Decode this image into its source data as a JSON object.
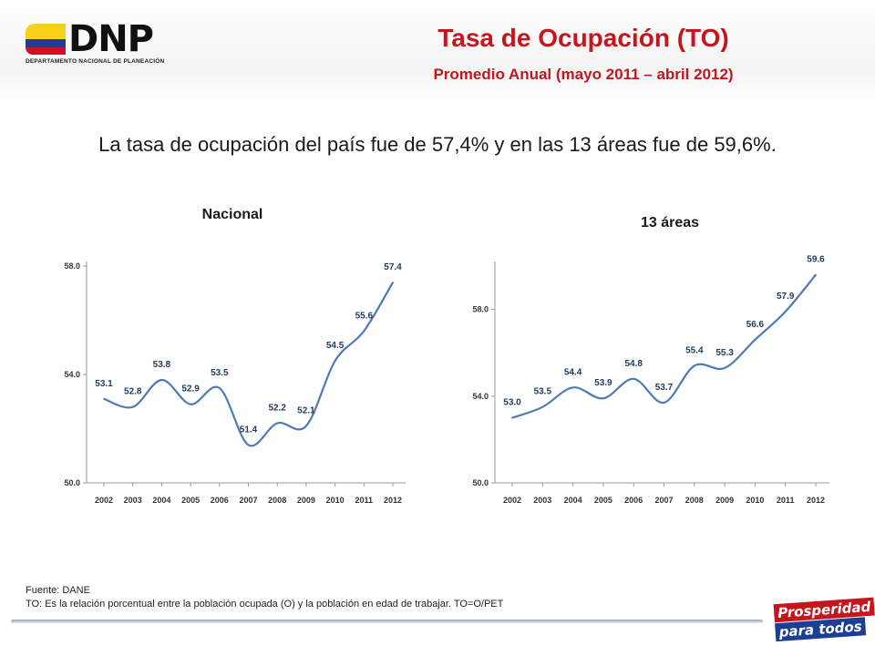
{
  "header": {
    "logo_text": "DNP",
    "logo_subtitle": "DEPARTAMENTO NACIONAL DE PLANEACIÓN",
    "title": "Tasa de Ocupación (TO)",
    "subtitle": "Promedio Anual (mayo 2011 – abril 2012)"
  },
  "headline": "La tasa de ocupación del país fue de 57,4% y en las 13 áreas fue de 59,6%.",
  "chart_data": [
    {
      "type": "line",
      "title": "Nacional",
      "x": [
        "2002",
        "2003",
        "2004",
        "2005",
        "2006",
        "2007",
        "2008",
        "2009",
        "2010",
        "2011",
        "2012"
      ],
      "series": [
        {
          "values": [
            53.1,
            52.8,
            53.8,
            52.9,
            53.5,
            51.4,
            52.2,
            52.1,
            54.5,
            55.6,
            57.4
          ]
        }
      ],
      "yticks": [
        "50.0",
        "54.0",
        "58.0"
      ],
      "data_labels": [
        "53.1",
        "52.8",
        "53.8",
        "52.9",
        "53.5",
        "51.4",
        "52.2",
        "52.1",
        "54.5",
        "55.6",
        "57.4"
      ],
      "ylim": [
        50,
        58
      ],
      "grid": false,
      "color": "#4f7ab5"
    },
    {
      "type": "line",
      "title": "13 áreas",
      "x": [
        "2002",
        "2003",
        "2004",
        "2005",
        "2006",
        "2007",
        "2008",
        "2009",
        "2010",
        "2011",
        "2012"
      ],
      "series": [
        {
          "values": [
            53.0,
            53.5,
            54.4,
            53.9,
            54.8,
            53.7,
            55.4,
            55.3,
            56.6,
            57.9,
            59.6
          ]
        }
      ],
      "yticks": [
        "50.0",
        "54.0",
        "58.0"
      ],
      "data_labels": [
        "53.0",
        "53.5",
        "54.4",
        "53.9",
        "54.8",
        "53.7",
        "55.4",
        "55.3",
        "56.6",
        "57.9",
        "59.6"
      ],
      "ylim": [
        50,
        60
      ],
      "grid": false,
      "color": "#4f7ab5"
    }
  ],
  "footer": {
    "source": "Fuente: DANE",
    "definition": "TO: Es la relación porcentual entre la población ocupada (O) y la población  en edad de trabajar. TO=O/PET",
    "brand_line1": "Prosperidad",
    "brand_line2": "para todos"
  },
  "colors": {
    "title_red": "#c4161c",
    "line_blue": "#4f7ab5"
  }
}
